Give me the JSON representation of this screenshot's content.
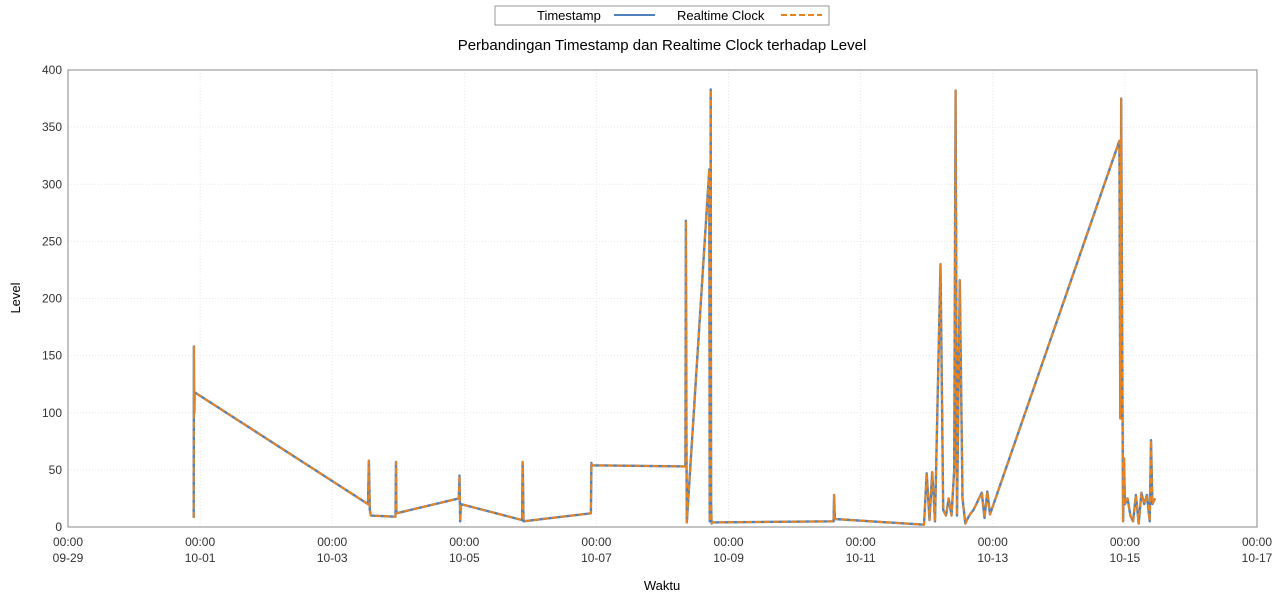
{
  "chart_data": {
    "type": "line",
    "title": "Perbandingan Timestamp dan Realtime Clock terhadap Level",
    "xlabel": "Waktu",
    "ylabel": "Level",
    "xlim": [
      "09-29 00:00",
      "10-17 00:00"
    ],
    "ylim": [
      0,
      400
    ],
    "yticks": [
      0,
      50,
      100,
      150,
      200,
      250,
      300,
      350,
      400
    ],
    "xticks": [
      {
        "time": "00:00",
        "date": "09-29"
      },
      {
        "time": "00:00",
        "date": "10-01"
      },
      {
        "time": "00:00",
        "date": "10-03"
      },
      {
        "time": "00:00",
        "date": "10-05"
      },
      {
        "time": "00:00",
        "date": "10-07"
      },
      {
        "time": "00:00",
        "date": "10-09"
      },
      {
        "time": "00:00",
        "date": "10-11"
      },
      {
        "time": "00:00",
        "date": "10-13"
      },
      {
        "time": "00:00",
        "date": "10-15"
      },
      {
        "time": "00:00",
        "date": "10-17"
      }
    ],
    "grid": true,
    "legend_position": "top-center",
    "series": [
      {
        "name": "Timestamp",
        "color": "#4f81bd",
        "style": "solid",
        "x": [
          "09-30 21:40",
          "09-30 21:45",
          "09-30 21:50",
          "09-30 21:55",
          "09-30 22:00",
          "10-03 13:00",
          "10-03 13:20",
          "10-03 13:40",
          "10-03 14:00",
          "10-03 23:00",
          "10-03 23:10",
          "10-03 23:20",
          "10-04 22:00",
          "10-04 22:15",
          "10-04 22:30",
          "10-04 22:45",
          "10-05 21:00",
          "10-05 21:10",
          "10-05 21:20",
          "10-05 21:30",
          "10-06 22:00",
          "10-06 22:10",
          "10-06 22:20",
          "10-08 08:20",
          "10-08 08:30",
          "10-08 08:40",
          "10-08 08:50",
          "10-08 17:00",
          "10-08 17:10",
          "10-08 17:20",
          "10-08 17:30",
          "10-08 17:40",
          "10-08 17:50",
          "10-08 18:00",
          "10-10 14:10",
          "10-10 14:20",
          "10-10 14:30",
          "10-10 14:40",
          "10-11 23:00",
          "10-12 00:00",
          "10-12 01:00",
          "10-12 02:00",
          "10-12 03:00",
          "10-12 05:00",
          "10-12 06:00",
          "10-12 07:00",
          "10-12 08:00",
          "10-12 09:00",
          "10-12 10:00",
          "10-12 10:30",
          "10-12 11:00",
          "10-12 12:00",
          "10-12 13:00",
          "10-12 14:00",
          "10-12 15:00",
          "10-12 16:00",
          "10-12 17:00",
          "10-12 18:00",
          "10-12 19:00",
          "10-12 20:00",
          "10-12 21:00",
          "10-12 22:00",
          "10-12 23:00",
          "10-14 22:00",
          "10-14 22:20",
          "10-14 22:40",
          "10-14 23:00",
          "10-14 23:20",
          "10-14 23:40",
          "10-15 00:00",
          "10-15 01:00",
          "10-15 02:00",
          "10-15 03:00",
          "10-15 04:00",
          "10-15 05:00",
          "10-15 06:00",
          "10-15 07:00",
          "10-15 08:00",
          "10-15 09:00",
          "10-15 09:30",
          "10-15 10:00",
          "10-15 11:00"
        ],
        "y": [
          8,
          158,
          120,
          100,
          118,
          20,
          58,
          15,
          10,
          9,
          57,
          12,
          25,
          45,
          5,
          20,
          6,
          57,
          40,
          5,
          12,
          56,
          54,
          53,
          268,
          90,
          4,
          313,
          5,
          6,
          383,
          20,
          3,
          4,
          5,
          28,
          15,
          7,
          2,
          47,
          6,
          48,
          5,
          230,
          15,
          10,
          25,
          10,
          50,
          382,
          10,
          216,
          25,
          3,
          8,
          12,
          15,
          20,
          25,
          30,
          8,
          31,
          11,
          338,
          95,
          375,
          180,
          5,
          60,
          20,
          25,
          10,
          5,
          28,
          3,
          30,
          20,
          28,
          5,
          76,
          20,
          25
        ]
      },
      {
        "name": "Realtime Clock",
        "color": "#e8841f",
        "style": "dashed",
        "x": [
          "09-30 21:40",
          "09-30 21:45",
          "09-30 21:50",
          "09-30 21:55",
          "09-30 22:00",
          "10-03 13:00",
          "10-03 13:20",
          "10-03 13:40",
          "10-03 14:00",
          "10-03 23:00",
          "10-03 23:10",
          "10-03 23:20",
          "10-04 22:00",
          "10-04 22:15",
          "10-04 22:30",
          "10-04 22:45",
          "10-05 21:00",
          "10-05 21:10",
          "10-05 21:20",
          "10-05 21:30",
          "10-06 22:00",
          "10-06 22:10",
          "10-06 22:20",
          "10-08 08:20",
          "10-08 08:30",
          "10-08 08:40",
          "10-08 08:50",
          "10-08 17:00",
          "10-08 17:10",
          "10-08 17:20",
          "10-08 17:30",
          "10-08 17:40",
          "10-08 17:50",
          "10-08 18:00",
          "10-10 14:10",
          "10-10 14:20",
          "10-10 14:30",
          "10-10 14:40",
          "10-11 23:00",
          "10-12 00:00",
          "10-12 01:00",
          "10-12 02:00",
          "10-12 03:00",
          "10-12 05:00",
          "10-12 06:00",
          "10-12 07:00",
          "10-12 08:00",
          "10-12 09:00",
          "10-12 10:00",
          "10-12 10:30",
          "10-12 11:00",
          "10-12 12:00",
          "10-12 13:00",
          "10-12 14:00",
          "10-12 15:00",
          "10-12 16:00",
          "10-12 17:00",
          "10-12 18:00",
          "10-12 19:00",
          "10-12 20:00",
          "10-12 21:00",
          "10-12 22:00",
          "10-12 23:00",
          "10-14 22:00",
          "10-14 22:20",
          "10-14 22:40",
          "10-14 23:00",
          "10-14 23:20",
          "10-14 23:40",
          "10-15 00:00",
          "10-15 01:00",
          "10-15 02:00",
          "10-15 03:00",
          "10-15 04:00",
          "10-15 05:00",
          "10-15 06:00",
          "10-15 07:00",
          "10-15 08:00",
          "10-15 09:00",
          "10-15 09:30",
          "10-15 10:00",
          "10-15 11:00"
        ],
        "y": [
          8,
          158,
          120,
          100,
          118,
          20,
          58,
          15,
          10,
          9,
          57,
          12,
          25,
          45,
          5,
          20,
          6,
          57,
          40,
          5,
          12,
          56,
          54,
          53,
          268,
          90,
          4,
          313,
          5,
          6,
          383,
          20,
          3,
          4,
          5,
          28,
          15,
          7,
          2,
          47,
          6,
          48,
          5,
          230,
          15,
          10,
          25,
          10,
          50,
          382,
          10,
          216,
          25,
          3,
          8,
          12,
          15,
          20,
          25,
          30,
          8,
          31,
          11,
          338,
          95,
          375,
          180,
          5,
          60,
          20,
          25,
          10,
          5,
          28,
          3,
          30,
          20,
          28,
          5,
          76,
          20,
          25
        ]
      }
    ]
  }
}
